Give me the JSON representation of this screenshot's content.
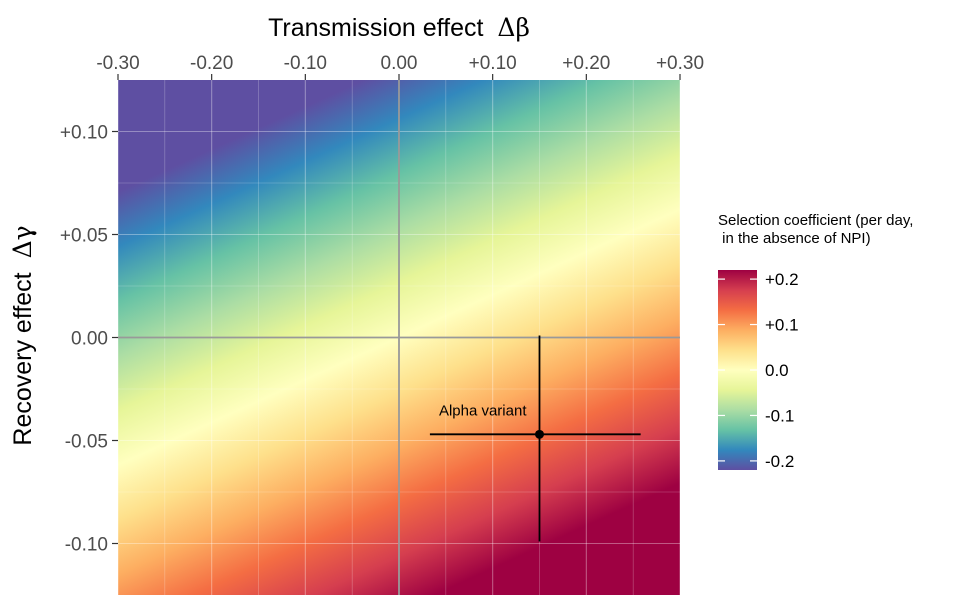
{
  "chart_data": {
    "type": "heatmap",
    "title": "",
    "xlabel": "Transmission effect",
    "xlabel_symbol": "Δβ",
    "ylabel": "Recovery effect",
    "ylabel_symbol": "Δγ",
    "xlim": [
      -0.3,
      0.3
    ],
    "ylim": [
      -0.125,
      0.125
    ],
    "x_ticks": [
      -0.3,
      -0.2,
      -0.1,
      0.0,
      0.1,
      0.2,
      0.3
    ],
    "x_tick_labels": [
      "-0.30",
      "-0.20",
      "-0.10",
      "0.00",
      "+0.10",
      "+0.20",
      "+0.30"
    ],
    "x_axis_position": "top",
    "y_ticks": [
      0.1,
      0.05,
      0.0,
      -0.05,
      -0.1
    ],
    "y_tick_labels": [
      "+0.10",
      "+0.05",
      "0.00",
      "-0.05",
      "-0.10"
    ],
    "fill_formula": "selection coefficient = Δβ − Δγ",
    "colorscale": "Spectral (reversed)",
    "colorscale_stops": [
      "#5e4fa2",
      "#3288bd",
      "#66c2a5",
      "#abdda4",
      "#e6f598",
      "#ffffbf",
      "#fee08b",
      "#fdae61",
      "#f46d43",
      "#d53e4f",
      "#9e0142"
    ],
    "fill_range": [
      -0.22,
      0.22
    ],
    "legend": {
      "title_line1": "Selection coefficient (per day,",
      "title_line2": " in the absence of NPI)",
      "ticks": [
        0.2,
        0.1,
        0.0,
        -0.1,
        -0.2
      ],
      "tick_labels": [
        "+0.2",
        "+0.1",
        "0.0",
        "-0.1",
        "-0.2"
      ],
      "placement": "right"
    },
    "reference_lines": {
      "x": 0.0,
      "y": 0.0,
      "color": "#999999"
    },
    "grid": true,
    "points": [
      {
        "label": "Alpha variant",
        "x": 0.15,
        "y": -0.047,
        "x_interval": [
          0.033,
          0.258
        ],
        "y_interval": [
          -0.099,
          0.001
        ]
      }
    ]
  }
}
